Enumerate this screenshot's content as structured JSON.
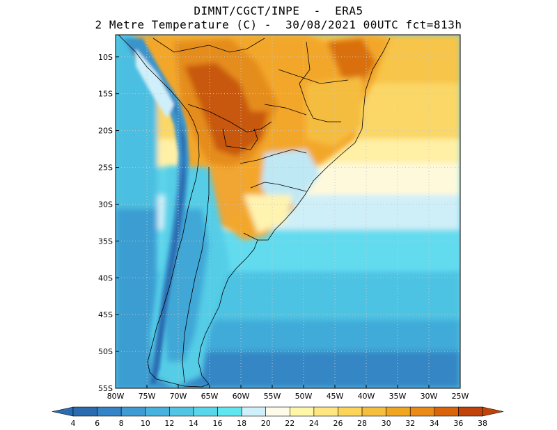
{
  "title_line1": "DIMNT/CGCT/INPE  -  ERA5",
  "title_line2": "2 Metre Temperature (C) -  30/08/2021 00UTC fct=813h",
  "map": {
    "lon_range": [
      -80,
      -25
    ],
    "lat_range": [
      -55,
      -7
    ],
    "lon_ticks": [
      {
        "value": -80,
        "label": "80W"
      },
      {
        "value": -75,
        "label": "75W"
      },
      {
        "value": -70,
        "label": "70W"
      },
      {
        "value": -65,
        "label": "65W"
      },
      {
        "value": -60,
        "label": "60W"
      },
      {
        "value": -55,
        "label": "55W"
      },
      {
        "value": -50,
        "label": "50W"
      },
      {
        "value": -45,
        "label": "45W"
      },
      {
        "value": -40,
        "label": "40W"
      },
      {
        "value": -35,
        "label": "35W"
      },
      {
        "value": -30,
        "label": "30W"
      },
      {
        "value": -25,
        "label": "25W"
      }
    ],
    "lat_ticks": [
      {
        "value": -10,
        "label": "10S"
      },
      {
        "value": -15,
        "label": "15S"
      },
      {
        "value": -20,
        "label": "20S"
      },
      {
        "value": -25,
        "label": "25S"
      },
      {
        "value": -30,
        "label": "30S"
      },
      {
        "value": -35,
        "label": "35S"
      },
      {
        "value": -40,
        "label": "40S"
      },
      {
        "value": -45,
        "label": "45S"
      },
      {
        "value": -50,
        "label": "50S"
      },
      {
        "value": -55,
        "label": "55S"
      }
    ]
  },
  "colorbar": {
    "labels": [
      "4",
      "6",
      "8",
      "10",
      "12",
      "14",
      "16",
      "18",
      "20",
      "22",
      "24",
      "26",
      "28",
      "30",
      "32",
      "34",
      "36",
      "38"
    ],
    "colors": [
      "#2b6cb0",
      "#3483c6",
      "#3e9bd4",
      "#47b2de",
      "#50c5e4",
      "#5ad6ea",
      "#5fe7f0",
      "#cfeffa",
      "#fffbea",
      "#fff7a8",
      "#ffe680",
      "#fcd45a",
      "#f5be3c",
      "#f0a61e",
      "#eb8a14",
      "#d9640c",
      "#c0430a"
    ]
  }
}
